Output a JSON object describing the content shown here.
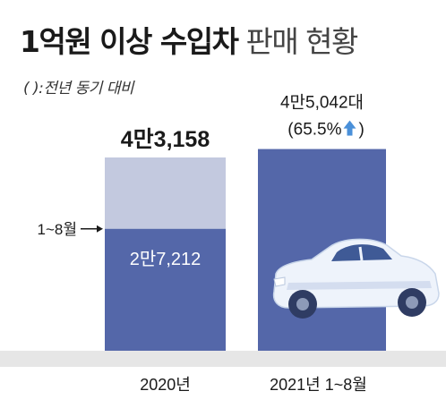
{
  "title_bold": "1억원 이상 수입차",
  "title_light": "판매 현황",
  "subtitle": "( ):전년 동기 대비",
  "marker_label": "1~8월",
  "colors": {
    "bar_dark": "#5467a9",
    "bar_light": "#c3c9df",
    "baseline_band": "#e6e6e6",
    "arrow": "#4a90d9"
  },
  "chart_data": {
    "type": "bar",
    "categories": [
      "2020년",
      "2021년 1~8월"
    ],
    "values": [
      43158,
      45042
    ],
    "value_labels": [
      "4만3,158",
      "4만5,042대"
    ],
    "change_label": "(65.5%",
    "change_direction": "up",
    "segment": {
      "category": "2020년",
      "value": 27212,
      "label": "2만7,212",
      "note": "1~8월"
    }
  }
}
